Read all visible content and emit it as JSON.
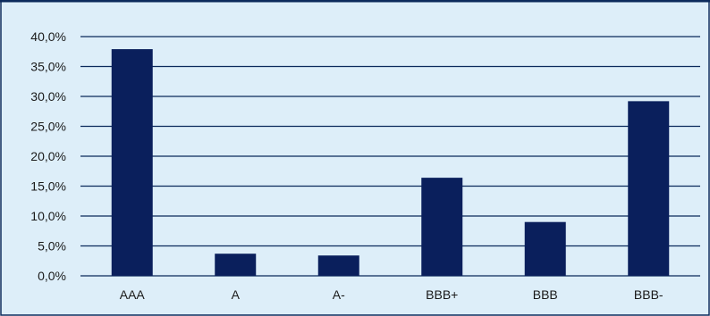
{
  "colors": {
    "background": "#ddeef9",
    "border": "#0b2a5c",
    "bar": "#0a1f5c",
    "gridline": "#0b2a5c",
    "text": "#1a1a1a"
  },
  "chart_data": {
    "type": "bar",
    "title": "",
    "xlabel": "",
    "ylabel": "",
    "categories": [
      "AAA",
      "A",
      "A-",
      "BBB+",
      "BBB",
      "BBB-"
    ],
    "values": [
      37.9,
      3.7,
      3.4,
      16.4,
      9.0,
      29.2
    ],
    "ylim": [
      0,
      40
    ],
    "yticks": [
      0,
      5,
      10,
      15,
      20,
      25,
      30,
      35,
      40
    ],
    "ytick_labels": [
      "0,0%",
      "5,0%",
      "10,0%",
      "15,0%",
      "20,0%",
      "25,0%",
      "30,0%",
      "35,0%",
      "40,0%"
    ],
    "grid": true,
    "legend": "none"
  }
}
